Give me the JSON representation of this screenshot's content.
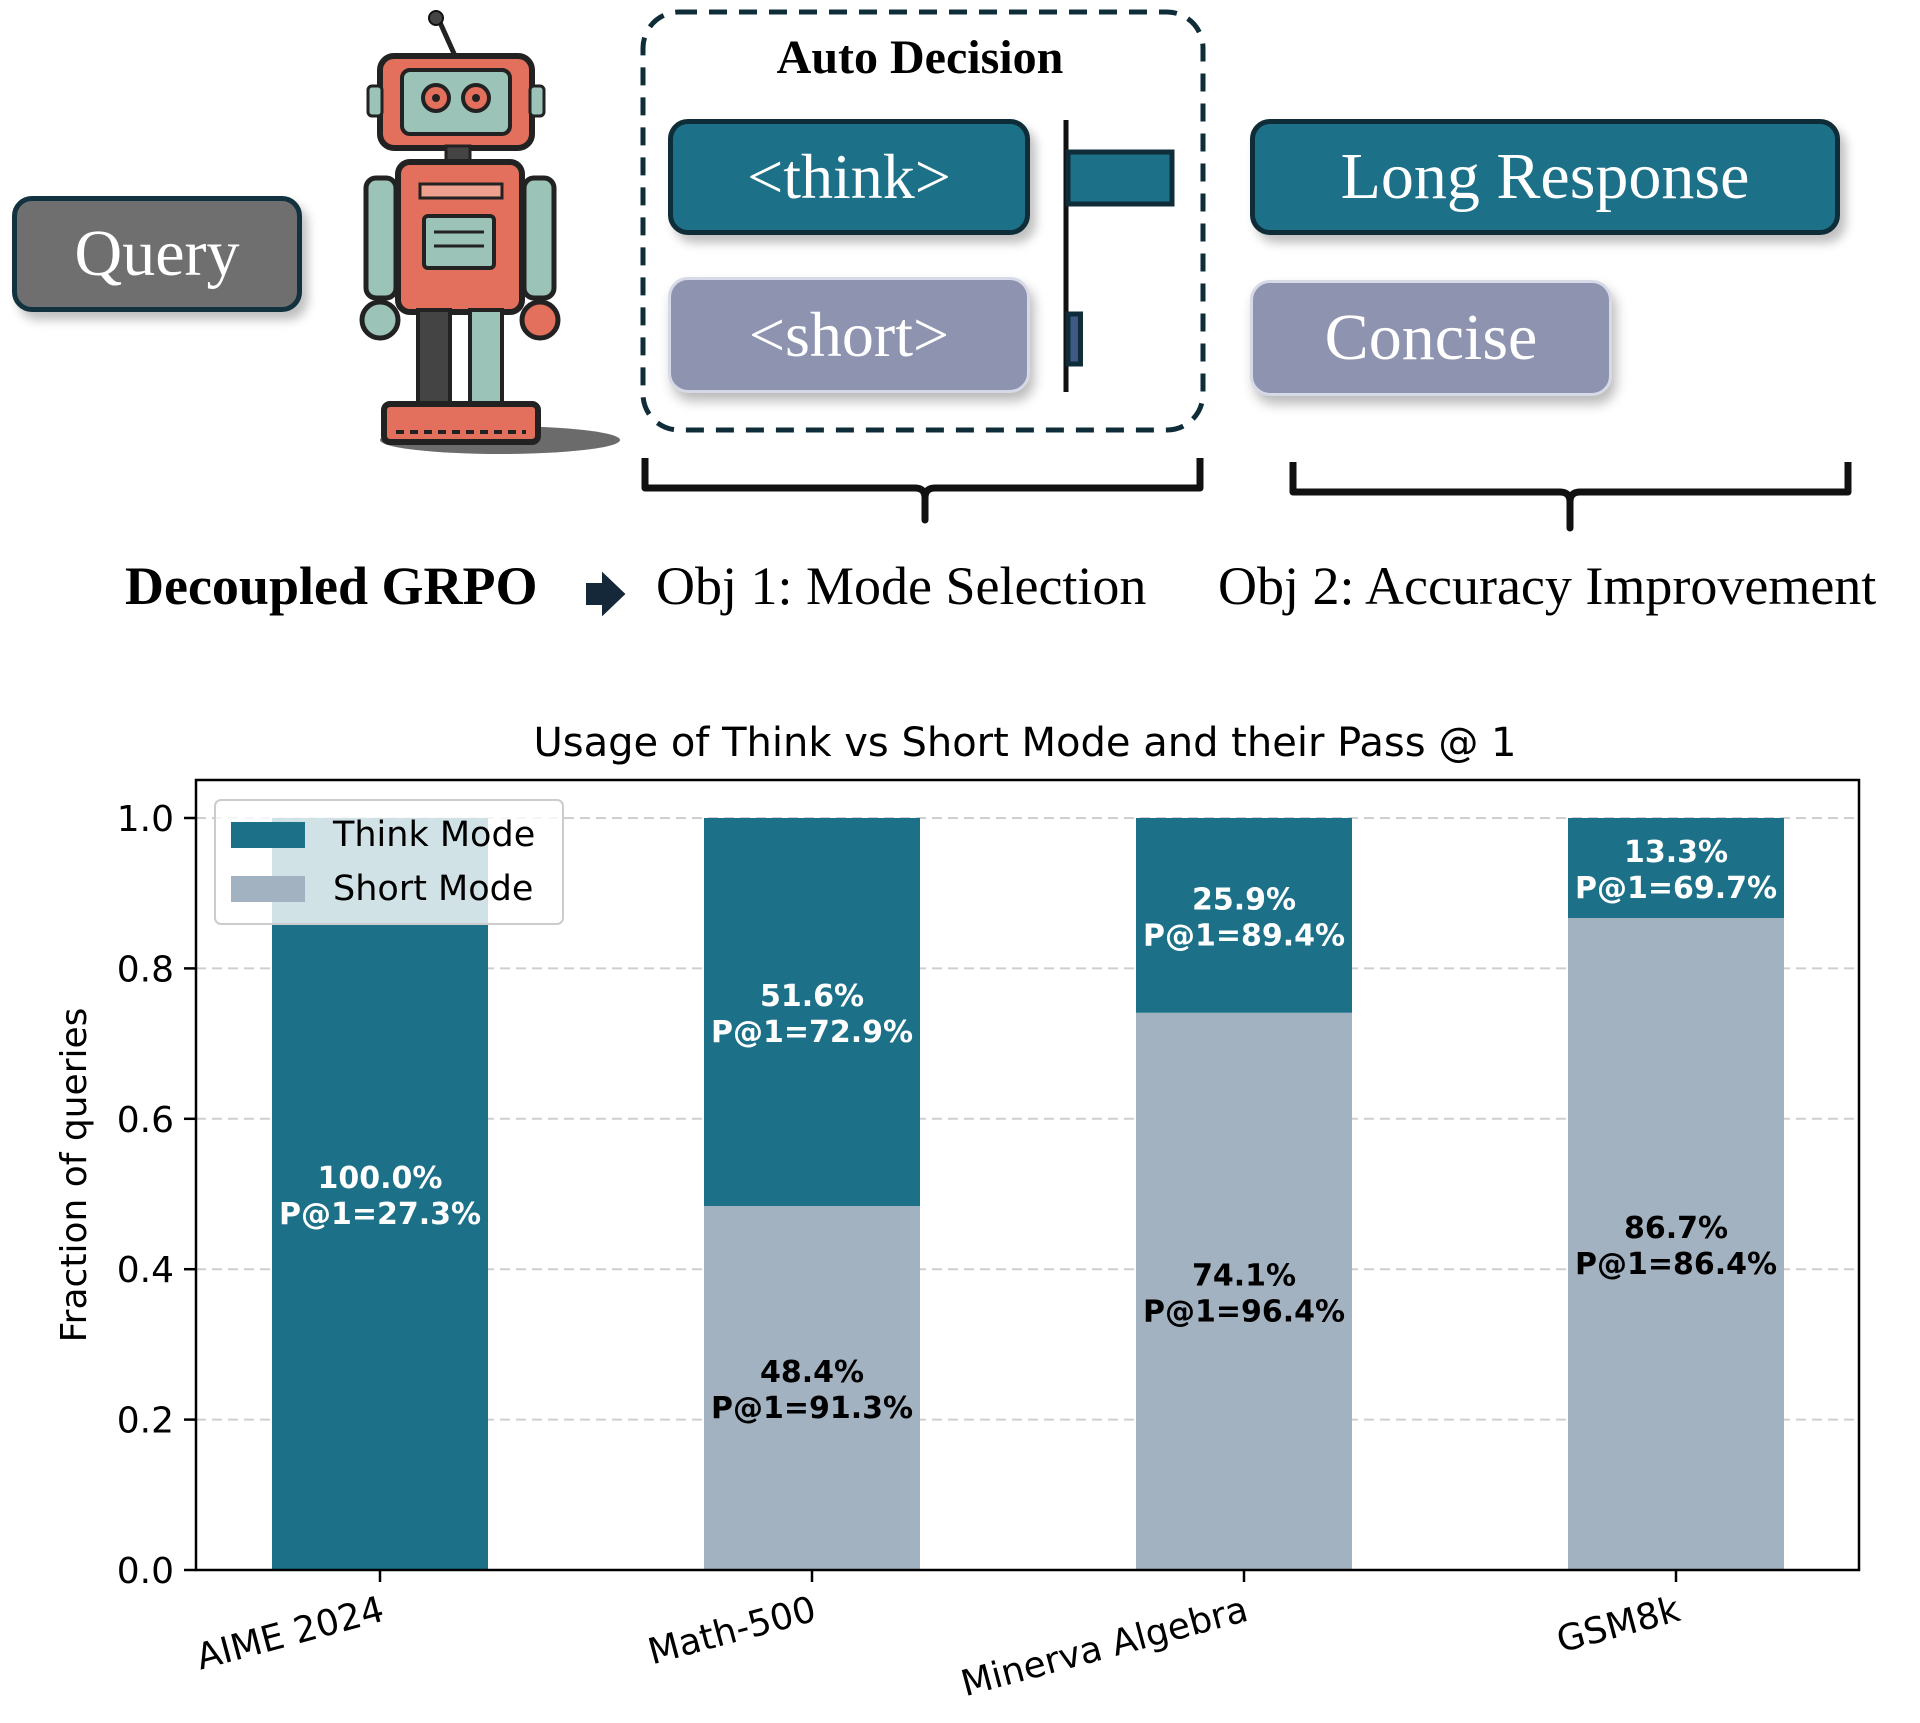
{
  "diagram": {
    "query_label": "Query",
    "auto_decision_title": "Auto Decision",
    "think_tag": "<think>",
    "short_tag": "<short>",
    "long_response_label": "Long Response",
    "concise_label": "Concise",
    "method_label": "Decoupled GRPO",
    "objective_1": "Obj 1: Mode Selection",
    "objective_2": "Obj 2: Accuracy Improvement",
    "mode_bar_levels": {
      "think": 1.0,
      "short": 0.12
    },
    "colors": {
      "think": "#1c7188",
      "short": "#8e94b0",
      "query": "#6f6f6f",
      "border_dark": "#0f2c39"
    },
    "icons": [
      "robot-icon",
      "right-arrow-icon"
    ]
  },
  "chart_data": {
    "type": "bar",
    "stacked": true,
    "title": "Usage of Think vs Short Mode and their Pass @ 1",
    "xlabel": "",
    "ylabel": "Fraction of queries",
    "ylim": [
      0,
      1.0
    ],
    "yticks": [
      "0.0",
      "0.2",
      "0.4",
      "0.6",
      "0.8",
      "1.0"
    ],
    "categories": [
      "AIME 2024",
      "Math-500",
      "Minerva Algebra",
      "GSM8k"
    ],
    "grid": "horizontal dashed",
    "legend_position": "top-left",
    "series": [
      {
        "name": "Short Mode",
        "color": "#a3b2c0",
        "values": [
          0.0,
          0.484,
          0.741,
          0.867
        ],
        "labels": [
          "",
          "48.4%",
          "74.1%",
          "86.7%"
        ],
        "pass_at_1": [
          "",
          "P@1=91.3%",
          "P@1=96.4%",
          "P@1=86.4%"
        ]
      },
      {
        "name": "Think Mode",
        "color": "#1c7188",
        "values": [
          1.0,
          0.516,
          0.259,
          0.133
        ],
        "labels": [
          "100.0%",
          "51.6%",
          "25.9%",
          "13.3%"
        ],
        "pass_at_1": [
          "P@1=27.3%",
          "P@1=72.9%",
          "P@1=89.4%",
          "P@1=69.7%"
        ]
      }
    ]
  }
}
